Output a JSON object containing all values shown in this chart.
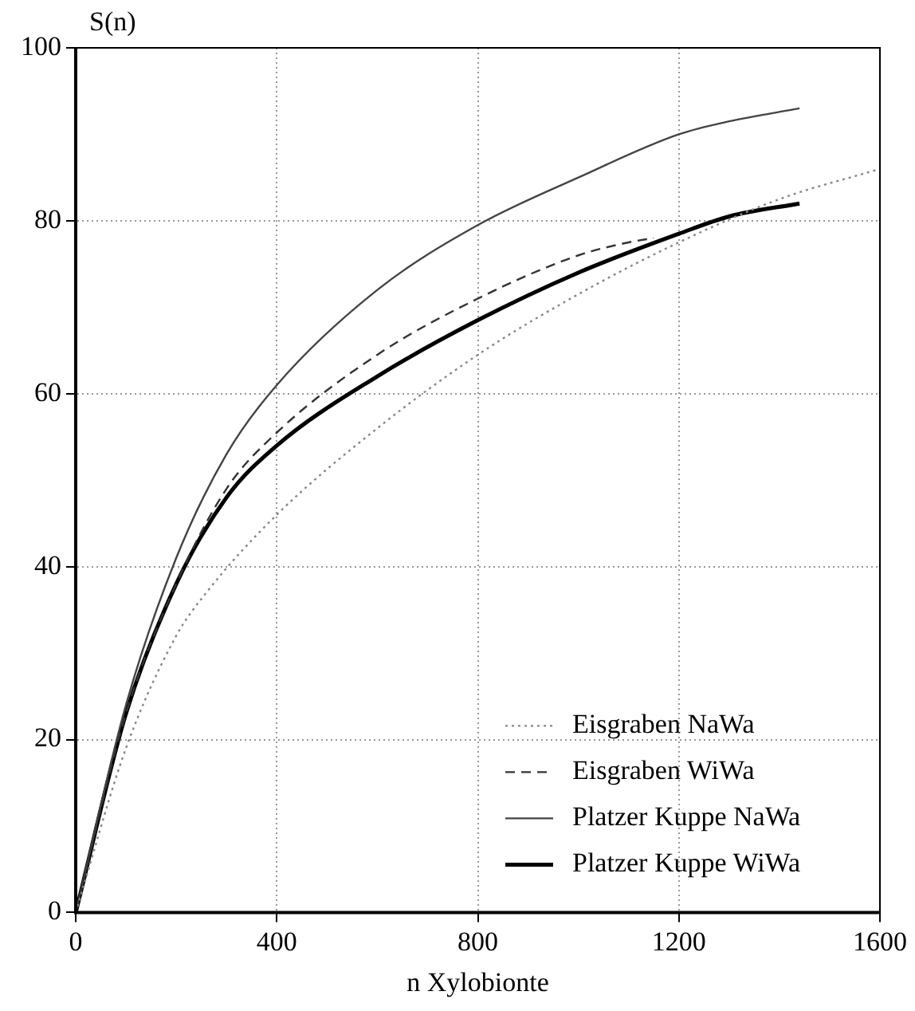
{
  "chart_data": {
    "type": "line",
    "xlabel": "n Xylobionte",
    "ylabel": "S(n)",
    "xlim": [
      0,
      1600
    ],
    "xticks": [
      0,
      400,
      800,
      1200,
      1600
    ],
    "ylim": [
      0,
      100
    ],
    "yticks": [
      0,
      20,
      40,
      60,
      80,
      100
    ],
    "grid": true,
    "legend": "bottom right",
    "marker": "none",
    "series": [
      {
        "name": "Eisgraben NaWa",
        "color": "#888888",
        "line_style": "dotted",
        "x": [
          0,
          100,
          200,
          260,
          400,
          600,
          800,
          1000,
          1200,
          1400,
          1600
        ],
        "values": [
          0,
          19,
          32,
          37,
          46,
          56,
          64.5,
          71.5,
          77.5,
          82.5,
          86
        ]
      },
      {
        "name": "Eisgraben WiWa",
        "color": "#333333",
        "line_style": "dashed",
        "x": [
          0,
          100,
          200,
          300,
          400,
          600,
          800,
          1000,
          1100,
          1150
        ],
        "values": [
          0,
          23,
          38,
          49,
          55.5,
          64.5,
          71,
          76,
          77.5,
          78
        ]
      },
      {
        "name": "Platzer Kuppe NaWa",
        "color": "#444444",
        "line_style": "solid",
        "x": [
          0,
          100,
          200,
          300,
          400,
          600,
          800,
          1000,
          1200,
          1300,
          1440
        ],
        "values": [
          0,
          24,
          41,
          53,
          61,
          72,
          79.5,
          85,
          90,
          91.5,
          93
        ]
      },
      {
        "name": "Platzer Kuppe WiWa",
        "color": "#000000",
        "line_style": "solid",
        "x": [
          0,
          100,
          200,
          300,
          400,
          600,
          800,
          1000,
          1200,
          1300,
          1440
        ],
        "values": [
          0,
          23,
          38,
          48,
          54,
          62,
          68.5,
          74,
          78.5,
          80.5,
          82
        ]
      }
    ]
  }
}
